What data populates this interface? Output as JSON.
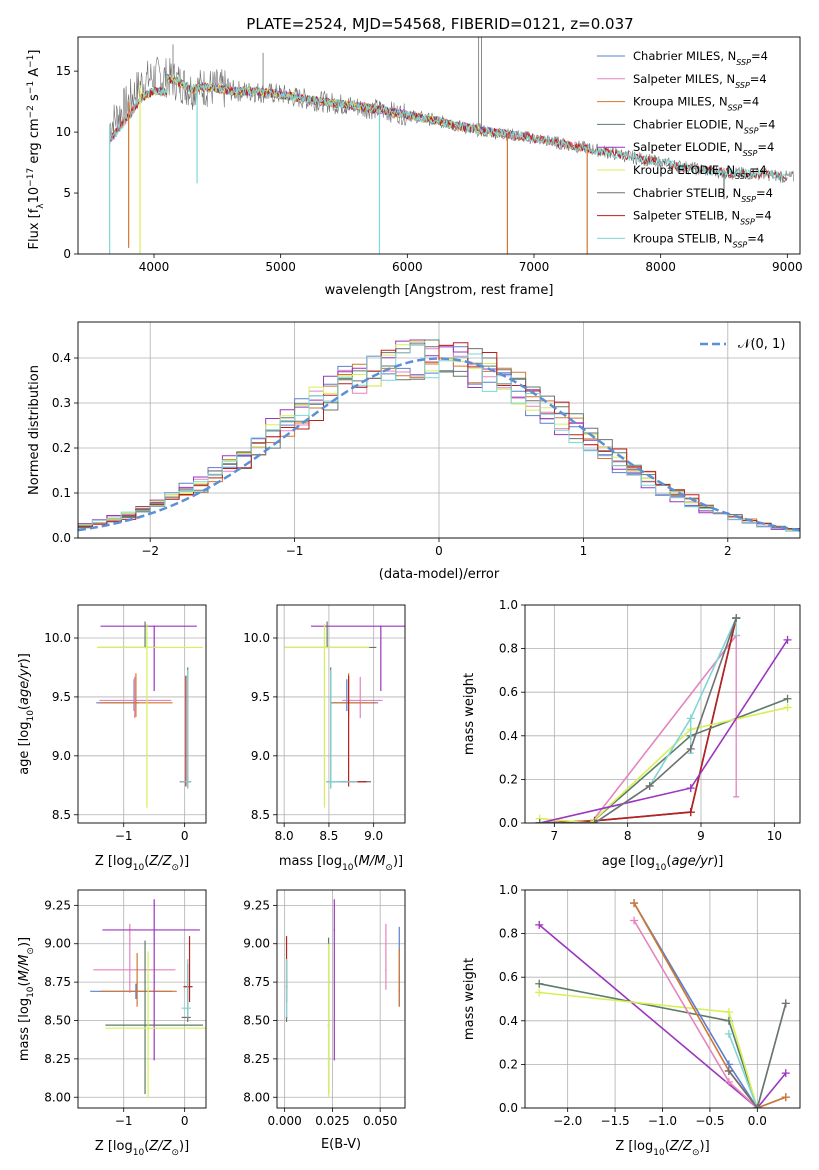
{
  "figure": {
    "title": "PLATE=2524, MJD=54568, FIBERID=0121, z=0.037"
  },
  "colors": {
    "Chabrier MILES": "#5b7fd0",
    "Salpeter MILES": "#e584bd",
    "Kroupa MILES": "#d2772f",
    "Chabrier ELODIE": "#5d7c68",
    "Salpeter ELODIE": "#9b36bf",
    "Kroupa ELODIE": "#d8ef55",
    "Chabrier STELIB": "#707070",
    "Salpeter STELIB": "#b8211c",
    "Kroupa STELIB": "#7fd6d6",
    "Gaussian": "#5b8fd8"
  },
  "chart_data": [
    {
      "id": "spectrum",
      "type": "line",
      "title": "PLATE=2524, MJD=54568, FIBERID=0121, z=0.037",
      "xlabel": "wavelength [Angstrom, rest frame]",
      "ylabel": "Flux [f_λ 10^-17 erg cm^-2 s^-1 A^-1]",
      "xlim": [
        3400,
        9100
      ],
      "ylim": [
        0,
        17.8
      ],
      "xticks": [
        4000,
        5000,
        6000,
        7000,
        8000,
        9000
      ],
      "yticks": [
        0,
        5,
        10,
        15
      ],
      "grid": false,
      "legend_position": "top-right",
      "legend": [
        {
          "model": "Chabrier MILES",
          "label": "Chabrier MILES, N",
          "sub": "SSP",
          "suffix": "=4"
        },
        {
          "model": "Salpeter MILES",
          "label": "Salpeter MILES, N",
          "sub": "SSP",
          "suffix": "=4"
        },
        {
          "model": "Kroupa MILES",
          "label": "Kroupa MILES, N",
          "sub": "SSP",
          "suffix": "=4"
        },
        {
          "model": "Chabrier ELODIE",
          "label": "Chabrier ELODIE, N",
          "sub": "SSP",
          "suffix": "=4"
        },
        {
          "model": "Salpeter ELODIE",
          "label": "Salpeter ELODIE, N",
          "sub": "SSP",
          "suffix": "=4"
        },
        {
          "model": "Kroupa ELODIE",
          "label": "Kroupa ELODIE, N",
          "sub": "SSP",
          "suffix": "=4"
        },
        {
          "model": "Chabrier STELIB",
          "label": "Chabrier STELIB, N",
          "sub": "SSP",
          "suffix": "=4"
        },
        {
          "model": "Salpeter STELIB",
          "label": "Salpeter STELIB, N",
          "sub": "SSP",
          "suffix": "=4"
        },
        {
          "model": "Kroupa STELIB",
          "label": "Kroupa STELIB, N",
          "sub": "SSP",
          "suffix": "=4"
        }
      ],
      "continuum": {
        "x": [
          3650,
          3800,
          3900,
          4000,
          4100,
          4200,
          4300,
          4400,
          4600,
          4800,
          5000,
          5200,
          5400,
          5600,
          5800,
          6000,
          6200,
          6400,
          6600,
          6800,
          7000,
          7200,
          7400,
          7600,
          7800,
          8000,
          8200,
          8400,
          8600,
          8800,
          9000
        ],
        "y": [
          10.5,
          12.5,
          14.0,
          14.6,
          14.5,
          14.1,
          13.5,
          13.7,
          13.4,
          13.3,
          13.1,
          12.7,
          12.4,
          12.1,
          11.8,
          11.4,
          11.0,
          10.5,
          10.1,
          9.8,
          9.5,
          9.1,
          8.7,
          8.3,
          7.9,
          7.5,
          7.1,
          6.8,
          6.6,
          6.6,
          6.3
        ]
      },
      "spikes": [
        {
          "x": 6563,
          "y": 17.8
        },
        {
          "x": 6585,
          "y": 17.8
        },
        {
          "x": 4861,
          "y": 16.5
        },
        {
          "x": 4150,
          "y": 17.2
        }
      ],
      "dips": [
        {
          "x": 3650,
          "y": 0
        },
        {
          "x": 3800,
          "y": 0.5
        },
        {
          "x": 3890,
          "y": 0
        },
        {
          "x": 4340,
          "y": 5.8
        },
        {
          "x": 5780,
          "y": 0
        },
        {
          "x": 6790,
          "y": 0
        },
        {
          "x": 7420,
          "y": 0
        },
        {
          "x": 8500,
          "y": 4.5
        }
      ]
    },
    {
      "id": "residuals",
      "type": "histogram",
      "xlabel": "(data-model)/error",
      "ylabel": "Normed distribution",
      "xlim": [
        -2.5,
        2.5
      ],
      "ylim": [
        0,
        0.48
      ],
      "xticks": [
        -2,
        -1,
        0,
        1,
        2
      ],
      "yticks": [
        0.0,
        0.1,
        0.2,
        0.3,
        0.4
      ],
      "grid": true,
      "legend_position": "top-right",
      "legend": [
        {
          "label": "𝒩(0, 1)",
          "model": "Gaussian",
          "style": "dashed"
        }
      ],
      "bin_width": 0.1
    },
    {
      "id": "age_vs_Z",
      "type": "errorbar",
      "xlabel": "Z [log10(Z/Z⊙)]",
      "ylabel": "age [log10(age/yr)]",
      "xlim": [
        -1.75,
        0.35
      ],
      "ylim": [
        8.43,
        10.28
      ],
      "xticks": [
        -1,
        0
      ],
      "yticks": [
        8.5,
        9.0,
        9.5,
        10.0
      ],
      "grid": true,
      "points": [
        {
          "model": "Chabrier MILES",
          "x": -0.83,
          "xerr": [
            0.62,
            0.08
          ],
          "y": 9.45,
          "yerr": [
            0.07,
            0.2
          ]
        },
        {
          "model": "Salpeter MILES",
          "x": -0.82,
          "xerr": [
            0.58,
            0.6
          ],
          "y": 9.47,
          "yerr": [
            0.15,
            0.2
          ]
        },
        {
          "model": "Kroupa MILES",
          "x": -0.8,
          "xerr": [
            0.6,
            0.6
          ],
          "y": 9.45,
          "yerr": [
            0.12,
            0.25
          ]
        },
        {
          "model": "Chabrier ELODIE",
          "x": -0.65,
          "xerr": [
            0.75,
            0.2
          ],
          "y": 9.92,
          "yerr": [
            0.0,
            0.22
          ]
        },
        {
          "model": "Salpeter ELODIE",
          "x": -0.5,
          "xerr": [
            0.88,
            0.7
          ],
          "y": 10.1,
          "yerr": [
            0.55,
            0.0
          ]
        },
        {
          "model": "Kroupa ELODIE",
          "x": -0.62,
          "xerr": [
            0.82,
            0.92
          ],
          "y": 9.92,
          "yerr": [
            1.36,
            0.2
          ]
        },
        {
          "model": "Chabrier STELIB",
          "x": 0.05,
          "xerr": [
            0.1,
            0.05
          ],
          "y": 8.78,
          "yerr": [
            0.05,
            0.97
          ]
        },
        {
          "model": "Salpeter STELIB",
          "x": 0.02,
          "xerr": [
            0.1,
            0.08
          ],
          "y": 8.78,
          "yerr": [
            0.04,
            0.9
          ]
        },
        {
          "model": "Kroupa STELIB",
          "x": 0.05,
          "xerr": [
            0.12,
            0.06
          ],
          "y": 8.78,
          "yerr": [
            0.06,
            0.95
          ]
        }
      ]
    },
    {
      "id": "age_vs_mass",
      "type": "errorbar",
      "xlabel": "mass [log10(M/M⊙)]",
      "ylabel": "",
      "xlim": [
        7.92,
        9.35
      ],
      "ylim": [
        8.43,
        10.28
      ],
      "xticks": [
        8.0,
        8.5,
        9.0
      ],
      "yticks": [
        8.5,
        9.0,
        9.5,
        10.0
      ],
      "grid": true,
      "points": [
        {
          "model": "Chabrier MILES",
          "x": 8.7,
          "xerr": [
            0.18,
            0.35
          ],
          "y": 9.45,
          "yerr": [
            0.07,
            0.2
          ]
        },
        {
          "model": "Salpeter MILES",
          "x": 8.85,
          "xerr": [
            0.2,
            0.25
          ],
          "y": 9.47,
          "yerr": [
            0.15,
            0.2
          ]
        },
        {
          "model": "Kroupa MILES",
          "x": 8.72,
          "xerr": [
            0.2,
            0.3
          ],
          "y": 9.45,
          "yerr": [
            0.12,
            0.25
          ]
        },
        {
          "model": "Chabrier ELODIE",
          "x": 8.48,
          "xerr": [
            0.48,
            0.55
          ],
          "y": 9.92,
          "yerr": [
            0.0,
            0.22
          ]
        },
        {
          "model": "Salpeter ELODIE",
          "x": 9.08,
          "xerr": [
            0.78,
            0.32
          ],
          "y": 10.1,
          "yerr": [
            0.55,
            0.0
          ]
        },
        {
          "model": "Kroupa ELODIE",
          "x": 8.45,
          "xerr": [
            0.45,
            0.5
          ],
          "y": 9.92,
          "yerr": [
            1.36,
            0.2
          ]
        },
        {
          "model": "Chabrier STELIB",
          "x": 8.52,
          "xerr": [
            0.05,
            0.45
          ],
          "y": 8.78,
          "yerr": [
            0.05,
            0.97
          ]
        },
        {
          "model": "Salpeter STELIB",
          "x": 8.72,
          "xerr": [
            0.1,
            0.2
          ],
          "y": 8.78,
          "yerr": [
            0.04,
            0.9
          ]
        },
        {
          "model": "Kroupa STELIB",
          "x": 8.52,
          "xerr": [
            0.05,
            0.3
          ],
          "y": 8.78,
          "yerr": [
            0.06,
            0.95
          ]
        }
      ]
    },
    {
      "id": "weight_vs_age",
      "type": "line",
      "xlabel": "age [log10(age/yr)]",
      "ylabel": "mass weight",
      "xlim": [
        6.6,
        10.35
      ],
      "ylim": [
        0,
        1.0
      ],
      "xticks": [
        7,
        8,
        9,
        10
      ],
      "yticks": [
        0.0,
        0.2,
        0.4,
        0.6,
        0.8,
        1.0
      ],
      "grid": true,
      "series": [
        {
          "model": "Salpeter MILES",
          "x": [
            6.8,
            7.5,
            9.48
          ],
          "y": [
            0.0,
            0.0,
            0.86
          ],
          "err": [
            {
              "x": 9.48,
              "lo": 0.12,
              "hi": 0.86
            }
          ]
        },
        {
          "model": "Kroupa MILES",
          "x": [
            6.8,
            7.55,
            8.86,
            9.48
          ],
          "y": [
            0.0,
            0.01,
            0.05,
            0.94
          ]
        },
        {
          "model": "Chabrier MILES",
          "x": [
            6.8,
            7.55,
            8.86,
            9.48
          ],
          "y": [
            0.0,
            0.01,
            0.05,
            0.94
          ]
        },
        {
          "model": "Salpeter STELIB",
          "x": [
            6.8,
            7.55,
            8.86,
            9.48
          ],
          "y": [
            0.0,
            0.01,
            0.05,
            0.94
          ]
        },
        {
          "model": "Chabrier ELODIE",
          "x": [
            6.8,
            7.5,
            8.86,
            10.18
          ],
          "y": [
            0.0,
            0.0,
            0.4,
            0.57
          ]
        },
        {
          "model": "Kroupa ELODIE",
          "x": [
            6.8,
            7.5,
            8.86,
            10.18
          ],
          "y": [
            0.02,
            0.0,
            0.43,
            0.53
          ]
        },
        {
          "model": "Salpeter ELODIE",
          "x": [
            6.8,
            8.86,
            10.18
          ],
          "y": [
            0.0,
            0.16,
            0.84
          ]
        },
        {
          "model": "Kroupa STELIB",
          "x": [
            6.8,
            7.55,
            8.3,
            8.86,
            9.48
          ],
          "y": [
            0.0,
            0.0,
            0.17,
            0.48,
            0.94
          ],
          "err": [
            {
              "x": 8.86,
              "lo": 0.32,
              "hi": 0.49
            },
            {
              "x": 9.48,
              "lo": 0.86,
              "hi": 0.94
            }
          ]
        },
        {
          "model": "Chabrier STELIB",
          "x": [
            6.8,
            7.55,
            8.3,
            8.86,
            9.48
          ],
          "y": [
            0.0,
            0.0,
            0.17,
            0.34,
            0.94
          ]
        }
      ]
    },
    {
      "id": "mass_vs_Z",
      "type": "errorbar",
      "xlabel": "Z [log10(Z/Z⊙)]",
      "ylabel": "mass [log10(M/M⊙)]",
      "xlim": [
        -1.75,
        0.35
      ],
      "ylim": [
        7.93,
        9.35
      ],
      "xticks": [
        -1,
        0
      ],
      "yticks": [
        8.0,
        8.25,
        8.5,
        8.75,
        9.0,
        9.25
      ],
      "grid": true,
      "points": [
        {
          "model": "Chabrier MILES",
          "x": -0.8,
          "xerr": [
            0.75,
            0.6
          ],
          "y": 8.69,
          "yerr": [
            0.05,
            0.05
          ]
        },
        {
          "model": "Salpeter MILES",
          "x": -0.9,
          "xerr": [
            0.6,
            0.75
          ],
          "y": 8.83,
          "yerr": [
            0.15,
            0.3
          ]
        },
        {
          "model": "Kroupa MILES",
          "x": -0.78,
          "xerr": [
            0.6,
            0.65
          ],
          "y": 8.69,
          "yerr": [
            0.1,
            0.25
          ]
        },
        {
          "model": "Chabrier ELODIE",
          "x": -0.65,
          "xerr": [
            0.65,
            0.95
          ],
          "y": 8.47,
          "yerr": [
            0.45,
            0.55
          ]
        },
        {
          "model": "Salpeter ELODIE",
          "x": -0.5,
          "xerr": [
            0.85,
            0.75
          ],
          "y": 9.09,
          "yerr": [
            0.85,
            0.2
          ]
        },
        {
          "model": "Kroupa ELODIE",
          "x": -0.6,
          "xerr": [
            0.7,
            1.0
          ],
          "y": 8.45,
          "yerr": [
            0.45,
            0.5
          ]
        },
        {
          "model": "Chabrier STELIB",
          "x": 0.05,
          "xerr": [
            0.1,
            0.05
          ],
          "y": 8.52,
          "yerr": [
            0.03,
            0.35
          ]
        },
        {
          "model": "Salpeter STELIB",
          "x": 0.08,
          "xerr": [
            0.1,
            0.05
          ],
          "y": 8.72,
          "yerr": [
            0.1,
            0.33
          ]
        },
        {
          "model": "Kroupa STELIB",
          "x": 0.05,
          "xerr": [
            0.1,
            0.05
          ],
          "y": 8.58,
          "yerr": [
            0.06,
            0.32
          ]
        }
      ]
    },
    {
      "id": "mass_vs_ebv",
      "type": "errorbar",
      "xlabel": "E(B-V)",
      "ylabel": "",
      "xlim": [
        -0.004,
        0.063
      ],
      "ylim": [
        7.93,
        9.35
      ],
      "xticks": [
        0.0,
        0.025,
        0.05
      ],
      "yticks": [
        8.0,
        8.25,
        8.5,
        8.75,
        9.0,
        9.25
      ],
      "grid": true,
      "points": [
        {
          "model": "Chabrier MILES",
          "x": 0.06,
          "y": 8.69,
          "yerr": [
            0.1,
            0.42
          ]
        },
        {
          "model": "Salpeter MILES",
          "x": 0.053,
          "y": 8.83,
          "yerr": [
            0.13,
            0.3
          ]
        },
        {
          "model": "Kroupa MILES",
          "x": 0.06,
          "y": 8.69,
          "yerr": [
            0.1,
            0.28
          ]
        },
        {
          "model": "Chabrier ELODIE",
          "x": 0.023,
          "y": 8.47,
          "yerr": [
            0.45,
            0.57
          ]
        },
        {
          "model": "Salpeter ELODIE",
          "x": 0.026,
          "y": 9.09,
          "yerr": [
            0.85,
            0.2
          ]
        },
        {
          "model": "Kroupa ELODIE",
          "x": 0.023,
          "y": 8.45,
          "yerr": [
            0.45,
            0.55
          ]
        },
        {
          "model": "Chabrier STELIB",
          "x": 0.001,
          "y": 8.52,
          "yerr": [
            0.03,
            0.37
          ]
        },
        {
          "model": "Salpeter STELIB",
          "x": 0.001,
          "y": 8.72,
          "yerr": [
            0.1,
            0.33
          ]
        },
        {
          "model": "Kroupa STELIB",
          "x": 0.001,
          "y": 8.58,
          "yerr": [
            0.06,
            0.32
          ]
        }
      ]
    },
    {
      "id": "weight_vs_Z",
      "type": "line",
      "xlabel": "Z [log10(Z/Z⊙)]",
      "ylabel": "mass weight",
      "xlim": [
        -2.45,
        0.45
      ],
      "ylim": [
        0,
        1.0
      ],
      "xticks": [
        -2.0,
        -1.5,
        -1.0,
        -0.5,
        0.0
      ],
      "yticks": [
        0.0,
        0.2,
        0.4,
        0.6,
        0.8,
        1.0
      ],
      "grid": true,
      "series": [
        {
          "model": "Salpeter ELODIE",
          "x": [
            -2.3,
            0.0,
            0.3
          ],
          "y": [
            0.84,
            0.0,
            0.16
          ]
        },
        {
          "model": "Chabrier ELODIE",
          "x": [
            -2.3,
            -0.3,
            0.0
          ],
          "y": [
            0.57,
            0.4,
            0.0
          ]
        },
        {
          "model": "Kroupa ELODIE",
          "x": [
            -2.3,
            -0.3,
            0.0
          ],
          "y": [
            0.53,
            0.44,
            0.0
          ]
        },
        {
          "model": "Salpeter MILES",
          "x": [
            -1.3,
            -0.3,
            0.0
          ],
          "y": [
            0.86,
            0.12,
            0.0
          ]
        },
        {
          "model": "Chabrier MILES",
          "x": [
            -1.3,
            -0.3,
            0.0,
            0.3
          ],
          "y": [
            0.94,
            0.2,
            0.0,
            0.05
          ]
        },
        {
          "model": "Kroupa MILES",
          "x": [
            -1.3,
            -0.3,
            0.0,
            0.3
          ],
          "y": [
            0.94,
            0.17,
            0.0,
            0.05
          ]
        },
        {
          "model": "Kroupa STELIB",
          "x": [
            -0.3,
            0.0,
            0.3
          ],
          "y": [
            0.34,
            0.0,
            0.48
          ]
        },
        {
          "model": "Chabrier STELIB",
          "x": [
            -0.3,
            0.0,
            0.3
          ],
          "y": [
            0.17,
            0.0,
            0.48
          ]
        }
      ]
    }
  ]
}
